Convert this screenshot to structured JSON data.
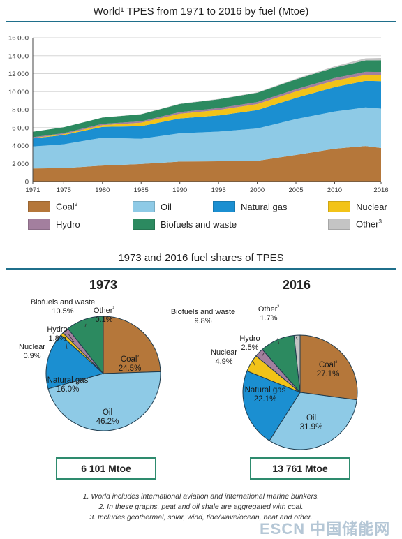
{
  "top_title": "World¹ TPES from 1971 to 2016 by fuel (Mtoe)",
  "bottom_title": "1973 and 2016 fuel shares of TPES",
  "chart_data": [
    {
      "type": "area",
      "stacked": true,
      "title": "World¹ TPES from 1971 to 2016 by fuel (Mtoe)",
      "x": [
        1971,
        1975,
        1980,
        1985,
        1990,
        1995,
        2000,
        2005,
        2010,
        2014,
        2016
      ],
      "x_ticks": [
        "1971",
        "1975",
        "1980",
        "1985",
        "1990",
        "1995",
        "2000",
        "2005",
        "2010",
        "2016"
      ],
      "x_tick_values": [
        1971,
        1975,
        1980,
        1985,
        1990,
        1995,
        2000,
        2005,
        2010,
        2016
      ],
      "ylim": [
        0,
        16000
      ],
      "y_ticks": [
        "0",
        "2 000",
        "4 000",
        "6 000",
        "8 000",
        "10 000",
        "12 000",
        "14 000",
        "16 000"
      ],
      "y_tick_values": [
        0,
        2000,
        4000,
        6000,
        8000,
        10000,
        12000,
        14000,
        16000
      ],
      "grid": true,
      "legend_position": "bottom",
      "series": [
        {
          "name": "Coal²",
          "color": "#b5773a",
          "values": [
            1450,
            1500,
            1780,
            1950,
            2220,
            2250,
            2300,
            2950,
            3650,
            3950,
            3730
          ]
        },
        {
          "name": "Oil",
          "color": "#8ecae6",
          "values": [
            2450,
            2650,
            3100,
            2800,
            3150,
            3300,
            3600,
            4000,
            4150,
            4300,
            4390
          ]
        },
        {
          "name": "Natural gas",
          "color": "#1b8fd1",
          "values": [
            900,
            1020,
            1200,
            1400,
            1650,
            1800,
            2050,
            2350,
            2700,
            2950,
            3040
          ]
        },
        {
          "name": "Nuclear",
          "color": "#f2c318",
          "values": [
            30,
            100,
            190,
            390,
            525,
            610,
            675,
            720,
            720,
            670,
            680
          ]
        },
        {
          "name": "Hydro",
          "color": "#a37f9e",
          "values": [
            105,
            115,
            145,
            165,
            185,
            210,
            225,
            250,
            295,
            335,
            345
          ]
        },
        {
          "name": "Biofuels and waste",
          "color": "#2c8a60",
          "values": [
            600,
            650,
            700,
            780,
            900,
            970,
            1020,
            1090,
            1170,
            1270,
            1305
          ]
        },
        {
          "name": "Other³",
          "color": "#c4c4c4",
          "values": [
            5,
            8,
            12,
            20,
            35,
            45,
            60,
            80,
            130,
            230,
            260
          ]
        }
      ]
    },
    {
      "type": "pie",
      "title": "1973",
      "total_label": "6 101 Mtoe",
      "slices": [
        {
          "name": "Coal²",
          "value": 24.5,
          "label": "24.5%",
          "color": "#b5773a"
        },
        {
          "name": "Oil",
          "value": 46.2,
          "label": "46.2%",
          "color": "#8ecae6"
        },
        {
          "name": "Natural gas",
          "value": 16.0,
          "label": "16.0%",
          "color": "#1b8fd1"
        },
        {
          "name": "Nuclear",
          "value": 0.9,
          "label": "0.9%",
          "color": "#f2c318"
        },
        {
          "name": "Hydro",
          "value": 1.8,
          "label": "1.8%",
          "color": "#a37f9e"
        },
        {
          "name": "Biofuels and waste",
          "value": 10.5,
          "label": "10.5%",
          "color": "#2c8a60"
        },
        {
          "name": "Other³",
          "value": 0.1,
          "label": "0.1%",
          "color": "#c4c4c4"
        }
      ]
    },
    {
      "type": "pie",
      "title": "2016",
      "total_label": "13 761 Mtoe",
      "slices": [
        {
          "name": "Coal²",
          "value": 27.1,
          "label": "27.1%",
          "color": "#b5773a"
        },
        {
          "name": "Oil",
          "value": 31.9,
          "label": "31.9%",
          "color": "#8ecae6"
        },
        {
          "name": "Natural gas",
          "value": 22.1,
          "label": "22.1%",
          "color": "#1b8fd1"
        },
        {
          "name": "Nuclear",
          "value": 4.9,
          "label": "4.9%",
          "color": "#f2c318"
        },
        {
          "name": "Hydro",
          "value": 2.5,
          "label": "2.5%",
          "color": "#a37f9e"
        },
        {
          "name": "Biofuels and waste",
          "value": 9.8,
          "label": "9.8%",
          "color": "#2c8a60"
        },
        {
          "name": "Other³",
          "value": 1.7,
          "label": "1.7%",
          "color": "#c4c4c4"
        }
      ]
    }
  ],
  "legend": [
    {
      "label": "Coal",
      "sup": "2",
      "color": "#b5773a"
    },
    {
      "label": "Oil",
      "sup": "",
      "color": "#8ecae6"
    },
    {
      "label": "Natural gas",
      "sup": "",
      "color": "#1b8fd1"
    },
    {
      "label": "Nuclear",
      "sup": "",
      "color": "#f2c318"
    },
    {
      "label": "Hydro",
      "sup": "",
      "color": "#a37f9e"
    },
    {
      "label": "Biofuels and waste",
      "sup": "",
      "color": "#2c8a60"
    },
    {
      "label": "Other",
      "sup": "3",
      "color": "#c4c4c4"
    }
  ],
  "notes": [
    "1. World includes international aviation and international marine bunkers.",
    "2. In these graphs, peat and oil shale are aggregated with coal.",
    "3. Includes geothermal, solar, wind, tide/wave/ocean, heat and other."
  ],
  "watermark": "ESCN 中国储能网"
}
